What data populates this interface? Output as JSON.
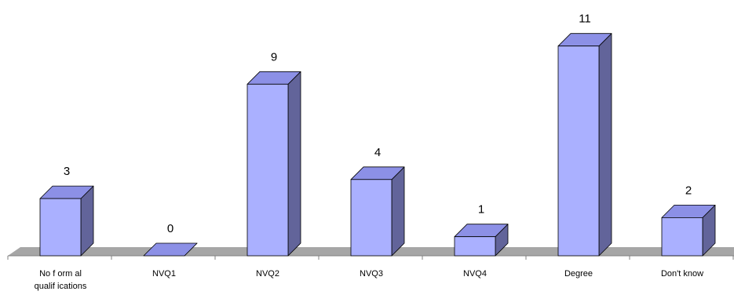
{
  "chart_data": {
    "type": "bar",
    "style": "3d-column",
    "title": "",
    "xlabel": "",
    "ylabel": "",
    "categories": [
      "No formal qualifications",
      "NVQ1",
      "NVQ2",
      "NVQ3",
      "NVQ4",
      "Degree",
      "Don't know"
    ],
    "category_label_lines": [
      [
        "No f orm al",
        "qualif ications"
      ],
      [
        "NVQ1"
      ],
      [
        "NVQ2"
      ],
      [
        "NVQ3"
      ],
      [
        "NVQ4"
      ],
      [
        "Degree"
      ],
      [
        "Don't know"
      ]
    ],
    "values": [
      3,
      0,
      9,
      4,
      1,
      11,
      2
    ],
    "value_labels": [
      "3",
      "0",
      "9",
      "4",
      "1",
      "11",
      "2"
    ],
    "ylim": [
      0,
      11
    ],
    "grid": false,
    "legend": "none",
    "colors": {
      "bar_front": "#aab0ff",
      "bar_top": "#8c90e6",
      "bar_side": "#62649a",
      "bar_stroke": "#000000",
      "floor": "#a6a6a6",
      "axis": "#808080"
    }
  }
}
